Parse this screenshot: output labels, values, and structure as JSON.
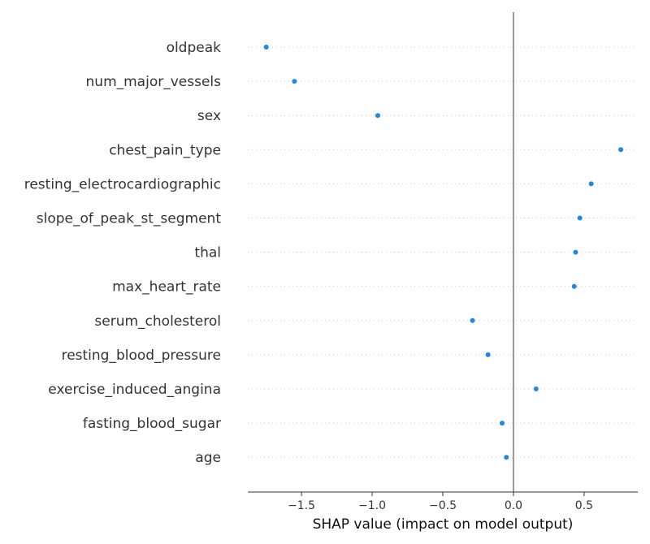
{
  "chart_data": {
    "type": "scatter",
    "title": "",
    "xlabel": "SHAP value (impact on model output)",
    "ylabel": "",
    "xlim": [
      -1.88,
      0.88
    ],
    "xticks": [
      -1.5,
      -1.0,
      -0.5,
      0.0,
      0.5
    ],
    "xtick_labels": [
      "−1.5",
      "−1.0",
      "−0.5",
      "0.0",
      "0.5"
    ],
    "point_color": "#1e88e5",
    "grid": false,
    "reference_line_x": 0,
    "features": [
      {
        "name": "oldpeak",
        "value": -1.75
      },
      {
        "name": "num_major_vessels",
        "value": -1.55
      },
      {
        "name": "sex",
        "value": -0.96
      },
      {
        "name": "chest_pain_type",
        "value": 0.76
      },
      {
        "name": "resting_electrocardiographic",
        "value": 0.55
      },
      {
        "name": "slope_of_peak_st_segment",
        "value": 0.47
      },
      {
        "name": "thal",
        "value": 0.44
      },
      {
        "name": "max_heart_rate",
        "value": 0.43
      },
      {
        "name": "serum_cholesterol",
        "value": -0.29
      },
      {
        "name": "resting_blood_pressure",
        "value": -0.18
      },
      {
        "name": "exercise_induced_angina",
        "value": 0.16
      },
      {
        "name": "fasting_blood_sugar",
        "value": -0.08
      },
      {
        "name": "age",
        "value": -0.05
      }
    ]
  }
}
